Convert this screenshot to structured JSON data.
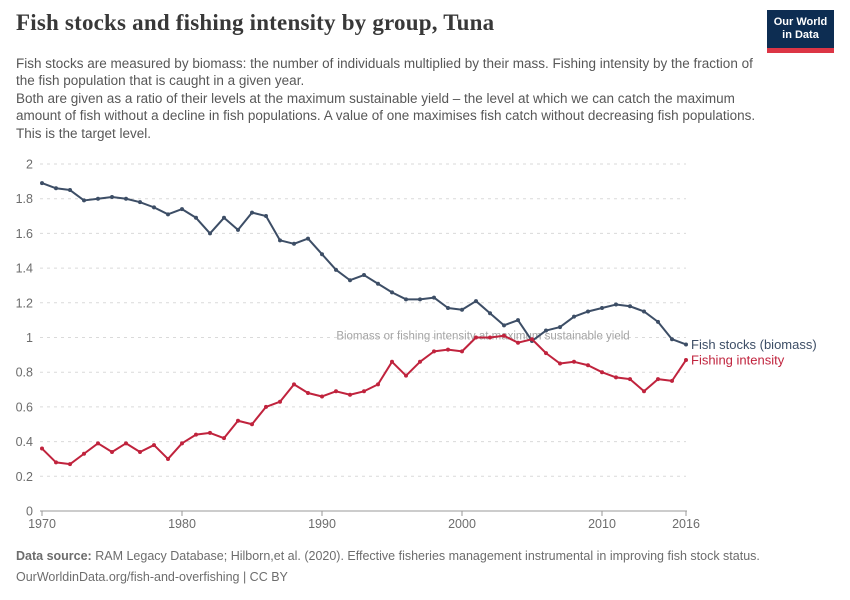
{
  "header": {
    "title": "Fish stocks and fishing intensity by group, Tuna",
    "logo": {
      "line1": "Our World",
      "line2": "in Data",
      "bg_color": "#0d2d52",
      "bar_color": "#dc3545"
    }
  },
  "subtitle": {
    "para1": "Fish stocks are measured by biomass: the number of individuals multiplied by their mass. Fishing intensity by the fraction of the fish population that is caught in a given year.",
    "para2": "Both are given as a ratio of their levels at the maximum sustainable yield – the level at which we can catch the maximum amount of fish without a decline in fish populations. A value of one maximises fish catch without decreasing fish populations. This is the target level."
  },
  "chart_data": {
    "type": "line",
    "title": "Fish stocks and fishing intensity by group, Tuna",
    "xlabel": "",
    "ylabel": "",
    "ylim": [
      0,
      2
    ],
    "yticks": [
      0,
      0.2,
      0.4,
      0.6,
      0.8,
      1,
      1.2,
      1.4,
      1.6,
      1.8,
      2
    ],
    "xticks": [
      1970,
      1980,
      1990,
      2000,
      2010,
      2016
    ],
    "grid": "horizontal-dashed",
    "legend_position": "right-of-line-ends",
    "annotation": "Biomass or fishing intensity at maximum sustainable yield",
    "annotation_at_y": 1,
    "annotation_color": "#a5a5a5",
    "axis_color": "#999999",
    "grid_color": "#dadada",
    "tick_label_color": "#6d6d6d",
    "x": [
      1970,
      1971,
      1972,
      1973,
      1974,
      1975,
      1976,
      1977,
      1978,
      1979,
      1980,
      1981,
      1982,
      1983,
      1984,
      1985,
      1986,
      1987,
      1988,
      1989,
      1990,
      1991,
      1992,
      1993,
      1994,
      1995,
      1996,
      1997,
      1998,
      1999,
      2000,
      2001,
      2002,
      2003,
      2004,
      2005,
      2006,
      2007,
      2008,
      2009,
      2010,
      2011,
      2012,
      2013,
      2014,
      2015,
      2016
    ],
    "series": [
      {
        "name": "Fish stocks (biomass)",
        "color": "#3d4e66",
        "values": [
          1.89,
          1.86,
          1.85,
          1.79,
          1.8,
          1.81,
          1.8,
          1.78,
          1.75,
          1.71,
          1.74,
          1.69,
          1.6,
          1.69,
          1.62,
          1.72,
          1.7,
          1.56,
          1.54,
          1.57,
          1.48,
          1.39,
          1.33,
          1.36,
          1.31,
          1.26,
          1.22,
          1.22,
          1.23,
          1.17,
          1.16,
          1.21,
          1.14,
          1.07,
          1.1,
          0.98,
          1.04,
          1.06,
          1.12,
          1.15,
          1.17,
          1.19,
          1.18,
          1.15,
          1.09,
          0.99,
          0.96
        ]
      },
      {
        "name": "Fishing intensity",
        "color": "#c0233d",
        "values": [
          0.36,
          0.28,
          0.27,
          0.33,
          0.39,
          0.34,
          0.39,
          0.34,
          0.38,
          0.3,
          0.39,
          0.44,
          0.45,
          0.42,
          0.52,
          0.5,
          0.6,
          0.63,
          0.73,
          0.68,
          0.66,
          0.69,
          0.67,
          0.69,
          0.73,
          0.86,
          0.78,
          0.86,
          0.92,
          0.93,
          0.92,
          1.0,
          1.0,
          1.01,
          0.97,
          0.99,
          0.91,
          0.85,
          0.86,
          0.84,
          0.8,
          0.77,
          0.76,
          0.69,
          0.76,
          0.75,
          0.87
        ]
      }
    ]
  },
  "footer": {
    "source_label": "Data source:",
    "source_text": " RAM Legacy Database; Hilborn,et al. (2020). Effective fisheries management instrumental in improving fish stock status.",
    "link_line": "OurWorldinData.org/fish-and-overfishing | CC BY"
  }
}
